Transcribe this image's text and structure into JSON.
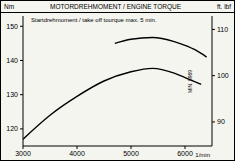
{
  "chart_data": {
    "type": "line",
    "title": "MOTORDREHMOMENT / ENGINE TORQUE",
    "y_label": "Nm",
    "y2_label": "ft. lbf",
    "x_label": "1/min",
    "annotations": [
      "Startdrehmoment / take off tourque max. 5 min.",
      "MIN. 5969"
    ],
    "xlim": [
      3000,
      6500
    ],
    "xticks": [
      3000,
      4000,
      5000,
      6000
    ],
    "ylim": [
      115,
      153
    ],
    "yticks": [
      120,
      130,
      140,
      150
    ],
    "y2lim": [
      84.8,
      112.9
    ],
    "y2ticks": [
      90,
      100,
      110
    ],
    "grid": false,
    "series": [
      {
        "color": "#000000",
        "x": [
          3000,
          3500,
          4000,
          4500,
          5000,
          5400,
          5800,
          6000,
          6300
        ],
        "values": [
          117,
          124,
          129.5,
          134,
          136.7,
          137.7,
          136.3,
          135,
          133
        ]
      },
      {
        "color": "#000000",
        "x": [
          4700,
          5000,
          5400,
          5800,
          6000,
          6200,
          6400
        ],
        "values": [
          145,
          146.2,
          146.7,
          145.5,
          144.4,
          143,
          141
        ]
      }
    ]
  }
}
